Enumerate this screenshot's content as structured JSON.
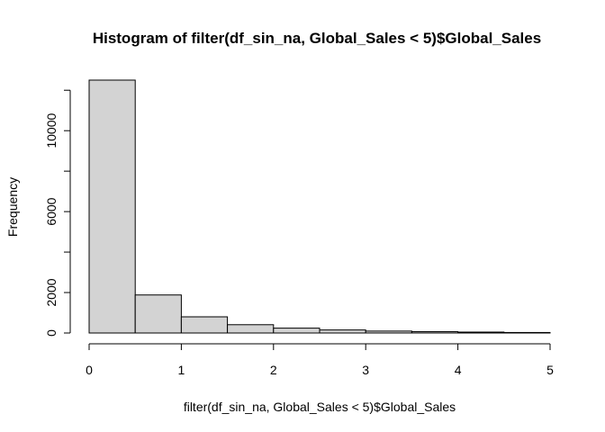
{
  "chart_data": {
    "type": "bar",
    "title": "Histogram of filter(df_sin_na, Global_Sales < 5)$Global_Sales",
    "xlabel": "filter(df_sin_na, Global_Sales < 5)$Global_Sales",
    "ylabel": "Frequency",
    "bins": [
      {
        "start": 0.0,
        "end": 0.5,
        "count": 12500
      },
      {
        "start": 0.5,
        "end": 1.0,
        "count": 1880
      },
      {
        "start": 1.0,
        "end": 1.5,
        "count": 800
      },
      {
        "start": 1.5,
        "end": 2.0,
        "count": 410
      },
      {
        "start": 2.0,
        "end": 2.5,
        "count": 240
      },
      {
        "start": 2.5,
        "end": 3.0,
        "count": 150
      },
      {
        "start": 3.0,
        "end": 3.5,
        "count": 95
      },
      {
        "start": 3.5,
        "end": 4.0,
        "count": 65
      },
      {
        "start": 4.0,
        "end": 4.5,
        "count": 45
      },
      {
        "start": 4.5,
        "end": 5.0,
        "count": 25
      }
    ],
    "xlim": [
      0,
      5
    ],
    "ylim": [
      0,
      12500
    ],
    "x_ticks": [
      0,
      1,
      2,
      3,
      4,
      5
    ],
    "x_tick_labels": [
      "0",
      "1",
      "2",
      "3",
      "4",
      "5"
    ],
    "y_ticks": [
      0,
      2000,
      6000,
      10000
    ],
    "y_tick_labels": [
      "0",
      "2000",
      "6000",
      "10000"
    ],
    "y_minor_ticks": [
      4000,
      8000,
      12000
    ],
    "bar_color": "#d3d3d3",
    "grid": false,
    "legend": "none"
  }
}
